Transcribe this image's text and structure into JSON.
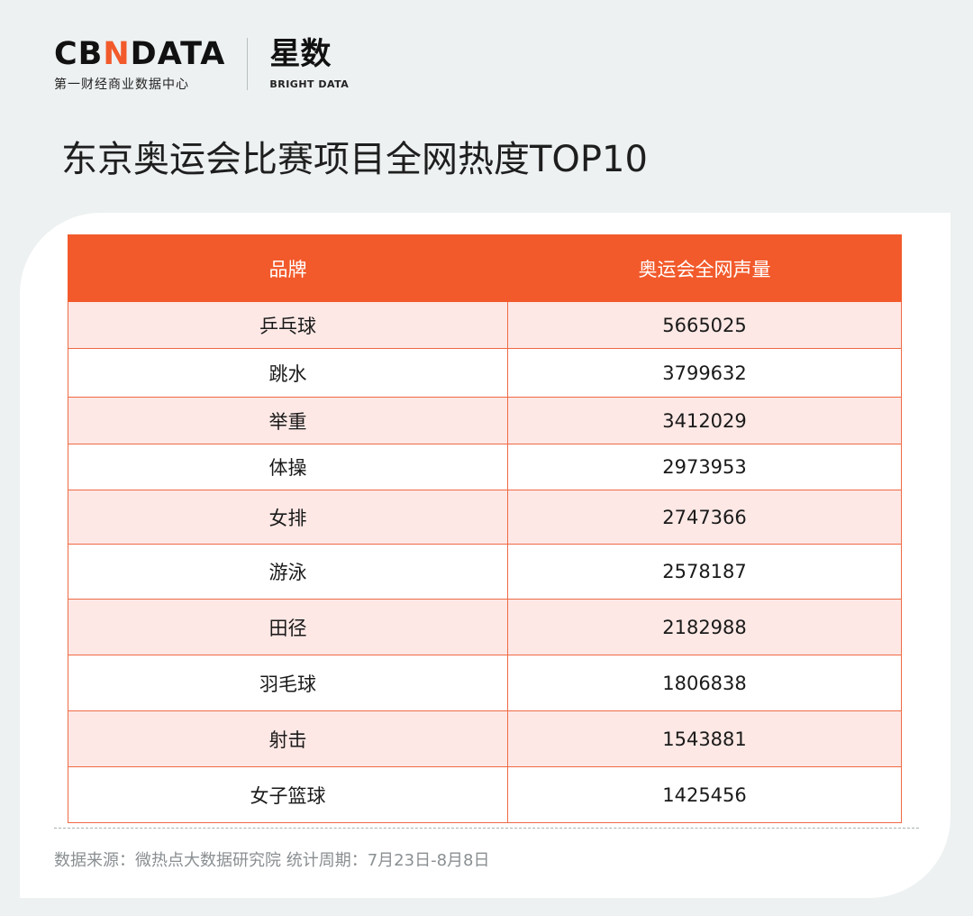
{
  "logo": {
    "wordmark_pre": "CB",
    "wordmark_accent": "N",
    "wordmark_post": "DATA",
    "subtitle": "第一财经商业数据中心",
    "brand2": "星数",
    "brand2_sub": "BRIGHT DATA"
  },
  "title": "东京奥运会比赛项目全网热度TOP10",
  "colors": {
    "accent": "#f25a2b",
    "row_tint": "#fde8e5",
    "background": "#edf1f2"
  },
  "chart_data": {
    "type": "table",
    "title": "东京奥运会比赛项目全网热度TOP10",
    "columns": [
      "品牌",
      "奥运会全网声量"
    ],
    "rows": [
      [
        "乒乓球",
        "5665025"
      ],
      [
        "跳水",
        "3799632"
      ],
      [
        "举重",
        "3412029"
      ],
      [
        "体操",
        "2973953"
      ],
      [
        "女排",
        "2747366"
      ],
      [
        "游泳",
        "2578187"
      ],
      [
        "田径",
        "2182988"
      ],
      [
        "羽毛球",
        "1806838"
      ],
      [
        "射击",
        "1543881"
      ],
      [
        "女子篮球",
        "1425456"
      ]
    ]
  },
  "footer": {
    "source": "数据来源：微热点大数据研究院  统计周期：7月23日-8月8日"
  }
}
